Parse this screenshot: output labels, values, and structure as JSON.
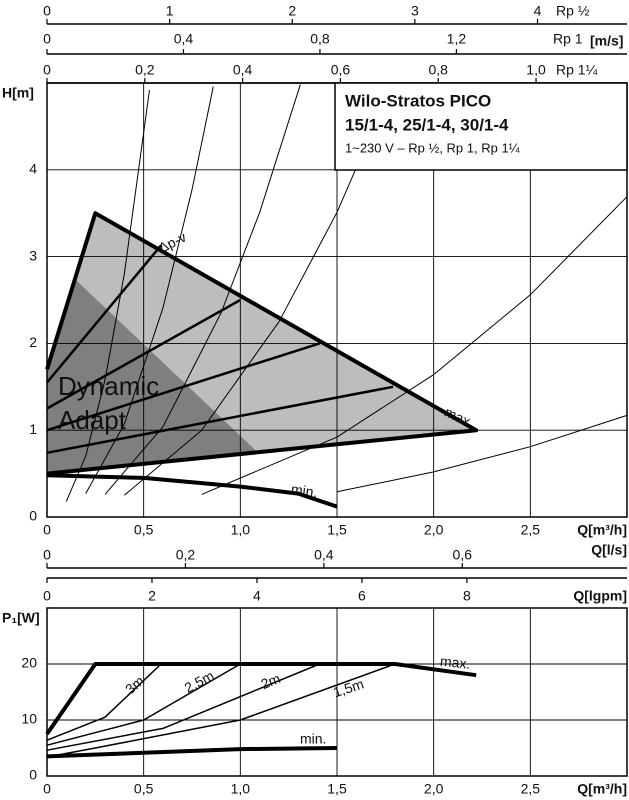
{
  "chart_data": [
    {
      "type": "line",
      "title": "Wilo-Stratos PICO",
      "subtitle": [
        "15/1-4, 25/1-4, 30/1-4",
        "1~230 V – Rp ½, Rp 1, Rp 1¼"
      ],
      "xlabel": "Q[m³/h]",
      "ylabel": "H[m]",
      "xlim": [
        0,
        3
      ],
      "ylim": [
        0,
        5
      ],
      "xticks": [
        0,
        {
          "value": 0.5,
          "label": "0,5"
        },
        {
          "value": 1,
          "label": "1,0"
        },
        {
          "value": 1.5,
          "label": "1,5"
        },
        {
          "value": 2,
          "label": "2,0"
        },
        {
          "value": 2.5,
          "label": "2,5"
        }
      ],
      "yticks": [
        0,
        1,
        2,
        3,
        4
      ],
      "grid": true,
      "secondary_axes": [
        {
          "label": "Rp ½",
          "xlim": [
            0,
            4.73
          ],
          "xticks": [
            0,
            1,
            2,
            3,
            4
          ]
        },
        {
          "label": "Rp 1",
          "unit": "[m/s]",
          "xlim": [
            0,
            1.7
          ],
          "xticks": [
            0,
            {
              "value": 0.4,
              "label": "0,4"
            },
            {
              "value": 0.8,
              "label": "0,8"
            },
            {
              "value": 1.2,
              "label": "1,2"
            }
          ]
        },
        {
          "label": "Rp 1¼",
          "xlim": [
            0,
            1.186
          ],
          "xticks": [
            0,
            {
              "value": 0.2,
              "label": "0,2"
            },
            {
              "value": 0.4,
              "label": "0,4"
            },
            {
              "value": 0.6,
              "label": "0,6"
            },
            {
              "value": 0.8,
              "label": "0,8"
            },
            {
              "value": 1,
              "label": "1,0"
            }
          ]
        }
      ],
      "areas": [
        {
          "color": "#bdbdbd",
          "x": [
            0,
            0.25,
            2.22,
            0
          ],
          "y": [
            1.7,
            3.5,
            1.0,
            0.5
          ]
        },
        {
          "name": [
            "Dynamic",
            "Adapt"
          ],
          "color": "#7f7f7f",
          "x": [
            0,
            0,
            0.145,
            1.09
          ],
          "y": [
            0.5,
            1.7,
            2.74,
            0.745
          ]
        }
      ],
      "series": [
        {
          "name": "max.",
          "color": "#000000",
          "width": 4,
          "x": [
            0,
            0.25,
            2.22,
            0
          ],
          "y": [
            1.7,
            3.5,
            1.0,
            0.5
          ]
        },
        {
          "name": "min.",
          "color": "#000000",
          "width": 4,
          "x": [
            0,
            0.5,
            1.0,
            1.3,
            1.5
          ],
          "y": [
            0.48,
            0.45,
            0.35,
            0.27,
            0.12
          ]
        },
        {
          "color": "#000000",
          "width": 2.5,
          "x": [
            0,
            1.79
          ],
          "y": [
            0.74,
            1.5
          ]
        },
        {
          "color": "#000000",
          "width": 2.5,
          "x": [
            0,
            1.41
          ],
          "y": [
            1.0,
            2.0
          ]
        },
        {
          "color": "#000000",
          "width": 2.5,
          "x": [
            0,
            1.0
          ],
          "y": [
            1.25,
            2.5
          ]
        },
        {
          "color": "#000000",
          "width": 2.5,
          "x": [
            0,
            0.59
          ],
          "y": [
            1.55,
            3.13
          ]
        },
        {
          "color": "#000000",
          "width": 1,
          "x": [
            0.1,
            0.2,
            0.3,
            0.4,
            0.53
          ],
          "y": [
            0.18,
            0.7,
            1.58,
            2.8,
            4.92
          ]
        },
        {
          "color": "#000000",
          "width": 1,
          "x": [
            0.2,
            0.4,
            0.6,
            0.75,
            0.86
          ],
          "y": [
            0.27,
            1.07,
            2.41,
            3.77,
            4.96
          ]
        },
        {
          "color": "#000000",
          "width": 1,
          "x": [
            0.3,
            0.6,
            0.9,
            1.1,
            1.31
          ],
          "y": [
            0.26,
            1.04,
            2.35,
            3.51,
            4.98
          ]
        },
        {
          "color": "#000000",
          "width": 1,
          "x": [
            0.4,
            0.8,
            1.2,
            1.5,
            1.79
          ],
          "y": [
            0.25,
            1.0,
            2.25,
            3.51,
            5.0
          ]
        },
        {
          "color": "#000000",
          "width": 1,
          "x": [
            0.8,
            1.5,
            2.0,
            2.5,
            3.0
          ],
          "y": [
            0.26,
            0.92,
            1.64,
            2.56,
            3.69
          ]
        },
        {
          "color": "#000000",
          "width": 1,
          "x": [
            1.5,
            2.0,
            2.5,
            3.0
          ],
          "y": [
            0.29,
            0.52,
            0.81,
            1.17
          ]
        }
      ],
      "annotations": [
        "Δp-v"
      ]
    },
    {
      "type": "line",
      "xlabel": "Q[m³/h]",
      "ylabel": "P₁[W]",
      "xlim": [
        0,
        3
      ],
      "ylim": [
        0,
        30
      ],
      "xticks": [
        0,
        {
          "value": 0.5,
          "label": "0,5"
        },
        {
          "value": 1,
          "label": "1,0"
        },
        {
          "value": 1.5,
          "label": "1,5"
        },
        {
          "value": 2,
          "label": "2,0"
        },
        {
          "value": 2.5,
          "label": "2,5"
        }
      ],
      "yticks": [
        0,
        10,
        20
      ],
      "grid": true,
      "secondary_axes": [
        {
          "label": "Q[l/s]",
          "xlim": [
            0,
            0.838
          ],
          "xticks": [
            0,
            {
              "value": 0.2,
              "label": "0,2"
            },
            {
              "value": 0.4,
              "label": "0,4"
            },
            {
              "value": 0.6,
              "label": "0,6"
            }
          ]
        },
        {
          "label": "Q[lgpm]",
          "xlim": [
            0,
            11.05
          ],
          "xticks": [
            0,
            2,
            4,
            6,
            8
          ]
        }
      ],
      "series": [
        {
          "name": "max.",
          "color": "#000000",
          "width": 4,
          "x": [
            0,
            0.25,
            1.8,
            2.22
          ],
          "y": [
            7.5,
            20,
            20,
            18
          ]
        },
        {
          "name": "min.",
          "color": "#000000",
          "width": 4,
          "x": [
            0,
            1.0,
            1.5
          ],
          "y": [
            3.5,
            4.8,
            5
          ]
        },
        {
          "name": "3m",
          "color": "#000000",
          "width": 1.5,
          "x": [
            0,
            0.3,
            0.59
          ],
          "y": [
            6.4,
            10.5,
            20
          ]
        },
        {
          "name": "2,5m",
          "color": "#000000",
          "width": 1.5,
          "x": [
            0,
            0.5,
            1.0
          ],
          "y": [
            5.5,
            10,
            20
          ]
        },
        {
          "name": "2m",
          "color": "#000000",
          "width": 1.5,
          "x": [
            0,
            0.6,
            1.41
          ],
          "y": [
            4.6,
            8.5,
            20
          ]
        },
        {
          "name": "1,5m",
          "color": "#000000",
          "width": 1.5,
          "x": [
            0,
            0.25,
            1.0,
            1.8
          ],
          "y": [
            3.4,
            5,
            10,
            20
          ]
        }
      ]
    }
  ]
}
